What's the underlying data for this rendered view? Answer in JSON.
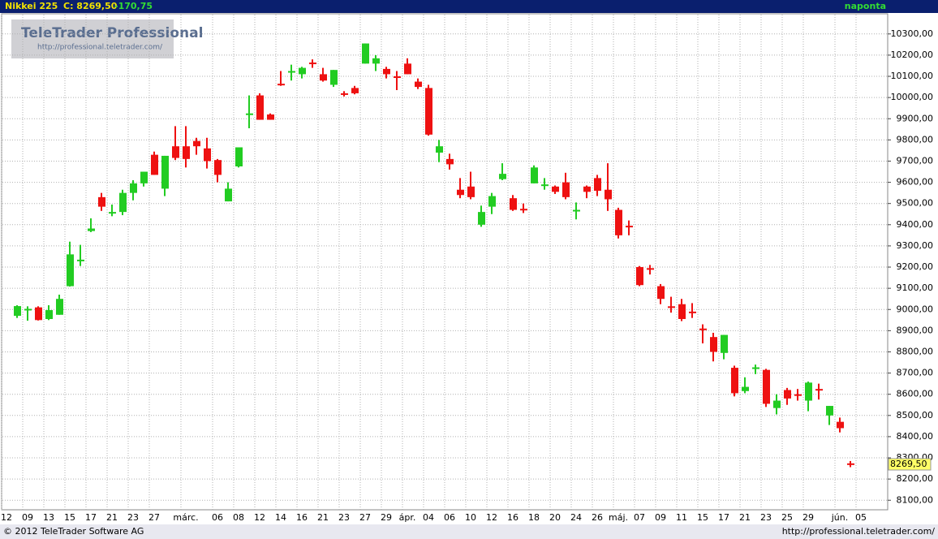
{
  "header": {
    "instrument": "Nikkei 225",
    "close_label": "C: 8269,50",
    "change": "-170,75",
    "interval": "naponta"
  },
  "logo": {
    "title": "TeleTrader Professional",
    "url": "http://professional.teletrader.com/"
  },
  "footer": {
    "copyright": "© 2012 TeleTrader Software AG",
    "url": "http://professional.teletrader.com/"
  },
  "chart_data": {
    "type": "candlestick",
    "up_color": "#22cc22",
    "down_color": "#ee1111",
    "grid": true,
    "categories": [
      "12",
      null,
      "09",
      null,
      "13",
      null,
      "15",
      null,
      "17",
      null,
      "21",
      null,
      "23",
      null,
      "27",
      null,
      null,
      "márc.",
      null,
      null,
      "06",
      null,
      "08",
      null,
      "12",
      null,
      "14",
      null,
      "16",
      null,
      "21",
      null,
      "23",
      null,
      "27",
      null,
      "29",
      null,
      "ápr.",
      null,
      "04",
      null,
      "06",
      null,
      "10",
      null,
      "12",
      null,
      "16",
      null,
      "18",
      null,
      "20",
      null,
      "24",
      null,
      "26",
      null,
      "máj.",
      null,
      "07",
      null,
      "09",
      null,
      "11",
      null,
      "15",
      null,
      "17",
      null,
      "21",
      null,
      "23",
      null,
      "25",
      null,
      "29",
      null,
      null,
      "jún.",
      null,
      "05"
    ],
    "open": [
      null,
      8970,
      9000,
      9010,
      8955,
      8975,
      9110,
      9230,
      9370,
      9530,
      9455,
      9460,
      9550,
      9595,
      9730,
      9570,
      9770,
      9770,
      9795,
      9760,
      9705,
      9510,
      9675,
      9920,
      10010,
      9920,
      10065,
      10120,
      10110,
      10165,
      10110,
      10060,
      10020,
      10045,
      10160,
      10160,
      10135,
      10100,
      10160,
      10075,
      10045,
      9740,
      9710,
      9565,
      9580,
      9400,
      9485,
      9615,
      9525,
      9475,
      9595,
      9585,
      9580,
      9600,
      9465,
      9580,
      9620,
      9565,
      9470,
      9395,
      9200,
      9195,
      9110,
      9015,
      9025,
      8990,
      8910,
      8870,
      8795,
      8725,
      8615,
      8722,
      8715,
      8535,
      8620,
      8600,
      8570,
      8625,
      8500,
      8470,
      8274,
      null
    ],
    "high": [
      null,
      9020,
      9015,
      9015,
      9020,
      9070,
      9320,
      9305,
      9430,
      9550,
      9495,
      9565,
      9610,
      9650,
      9745,
      9725,
      9865,
      9865,
      9810,
      9810,
      9710,
      9600,
      9765,
      10010,
      10020,
      9925,
      10125,
      10155,
      10145,
      10180,
      10140,
      10130,
      10030,
      10055,
      10255,
      10200,
      10145,
      10125,
      10185,
      10090,
      10060,
      9800,
      9735,
      9620,
      9650,
      9490,
      9550,
      9690,
      9540,
      9500,
      9680,
      9620,
      9585,
      9645,
      9505,
      9585,
      9635,
      9690,
      9480,
      9420,
      9205,
      9210,
      9120,
      9060,
      9050,
      9030,
      8930,
      8890,
      8880,
      8735,
      8680,
      8740,
      8720,
      8600,
      8630,
      8625,
      8660,
      8650,
      8545,
      8490,
      8285,
      null
    ],
    "low": [
      null,
      8960,
      8947,
      8948,
      8950,
      8975,
      9108,
      9205,
      9365,
      9465,
      9440,
      9445,
      9515,
      9580,
      9635,
      9535,
      9705,
      9670,
      9730,
      9665,
      9600,
      9510,
      9670,
      9855,
      9895,
      9895,
      10055,
      10080,
      10090,
      10140,
      10075,
      10050,
      10005,
      10015,
      10160,
      10125,
      10090,
      10035,
      10110,
      10040,
      9820,
      9695,
      9660,
      9525,
      9520,
      9390,
      9450,
      9610,
      9465,
      9455,
      9595,
      9565,
      9545,
      9520,
      9425,
      9525,
      9535,
      9465,
      9335,
      9350,
      9110,
      9165,
      9025,
      8985,
      8945,
      8960,
      8840,
      8755,
      8765,
      8590,
      8605,
      8695,
      8540,
      8505,
      8550,
      8570,
      8520,
      8575,
      8455,
      8420,
      8256,
      null
    ],
    "close": [
      null,
      9016,
      9003,
      8950,
      8997,
      9050,
      9260,
      9235,
      9382,
      9485,
      9460,
      9550,
      9595,
      9650,
      9635,
      9725,
      9715,
      9710,
      9770,
      9700,
      9635,
      9570,
      9765,
      9925,
      9895,
      9895,
      10060,
      10125,
      10140,
      10160,
      10080,
      10130,
      10015,
      10020,
      10255,
      10185,
      10110,
      10095,
      10110,
      10050,
      9825,
      9770,
      9685,
      9540,
      9530,
      9460,
      9535,
      9640,
      9470,
      9470,
      9670,
      9590,
      9555,
      9530,
      9470,
      9555,
      9560,
      9520,
      9350,
      9390,
      9115,
      9190,
      9050,
      9010,
      8955,
      8985,
      8905,
      8800,
      8880,
      8605,
      8635,
      8727,
      8555,
      8570,
      8580,
      8595,
      8655,
      8620,
      8545,
      8440,
      8269.5,
      null
    ],
    "last_price": {
      "value": 8269.5,
      "label": "8269,50"
    },
    "ylim": [
      8055,
      10395
    ],
    "yticks": [
      {
        "value": 8100,
        "label": "8100,00"
      },
      {
        "value": 8200,
        "label": "8200,00"
      },
      {
        "value": 8300,
        "label": "8300,00"
      },
      {
        "value": 8400,
        "label": "8400,00"
      },
      {
        "value": 8500,
        "label": "8500,00"
      },
      {
        "value": 8600,
        "label": "8600,00"
      },
      {
        "value": 8700,
        "label": "8700,00"
      },
      {
        "value": 8800,
        "label": "8800,00"
      },
      {
        "value": 8900,
        "label": "8900,00"
      },
      {
        "value": 9000,
        "label": "9000,00"
      },
      {
        "value": 9100,
        "label": "9100,00"
      },
      {
        "value": 9200,
        "label": "9200,00"
      },
      {
        "value": 9300,
        "label": "9300,00"
      },
      {
        "value": 9400,
        "label": "9400,00"
      },
      {
        "value": 9500,
        "label": "9500,00"
      },
      {
        "value": 9600,
        "label": "9600,00"
      },
      {
        "value": 9700,
        "label": "9700,00"
      },
      {
        "value": 9800,
        "label": "9800,00"
      },
      {
        "value": 9900,
        "label": "9900,00"
      },
      {
        "value": 10000,
        "label": "10000,00"
      },
      {
        "value": 10100,
        "label": "10100,00"
      },
      {
        "value": 10200,
        "label": "10200,00"
      },
      {
        "value": 10300,
        "label": "10300,00"
      }
    ]
  }
}
